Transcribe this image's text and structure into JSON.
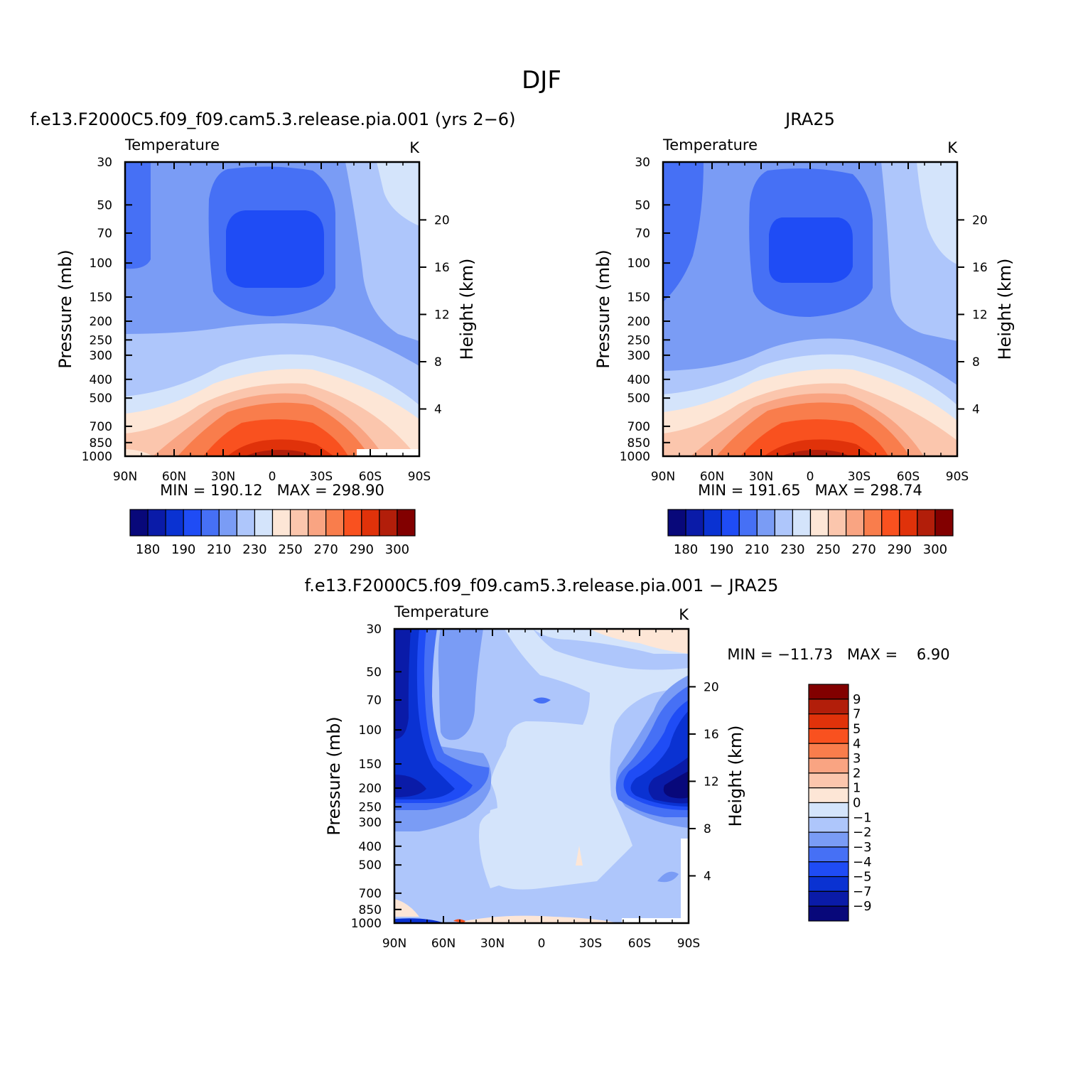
{
  "page_title": "DJF",
  "colors": {
    "abs_scale": [
      "#08087a",
      "#0a1ba8",
      "#0a32d2",
      "#1f4cf5",
      "#4670f5",
      "#7a9cf5",
      "#aec6fb",
      "#d4e4fb",
      "#fde6d6",
      "#fbc6ad",
      "#f9a482",
      "#f97d4c",
      "#f9511f",
      "#e0320a",
      "#b21e0a",
      "#820000"
    ],
    "diff_scale": [
      "#08087a",
      "#0a1ba8",
      "#0a32d2",
      "#1f4cf5",
      "#4670f5",
      "#7a9cf5",
      "#aec6fb",
      "#d4e4fb",
      "#fde6d6",
      "#fbc6ad",
      "#f9a482",
      "#f97d4c",
      "#f9511f",
      "#e0320a",
      "#b21e0a",
      "#820000"
    ]
  },
  "chart_data": [
    {
      "id": "model",
      "type": "contour",
      "title": "f.e13.F2000C5.f09_f09.cam5.3.release.pia.001 (yrs 2−6)",
      "left_label": "Temperature",
      "units": "K",
      "ylabel": "Pressure (mb)",
      "y2label": "Height (km)",
      "x_ticks": [
        "90N",
        "60N",
        "30N",
        "0",
        "30S",
        "60S",
        "90S"
      ],
      "y_ticks": [
        "30",
        "50",
        "70",
        "100",
        "150",
        "200",
        "250",
        "300",
        "400",
        "500",
        "700",
        "850",
        "1000"
      ],
      "y_tick_values": [
        30,
        50,
        70,
        100,
        150,
        200,
        250,
        300,
        400,
        500,
        700,
        850,
        1000
      ],
      "height_ticks": [
        "20",
        "16",
        "12",
        "8",
        "4"
      ],
      "height_tick_values": [
        20,
        16,
        12,
        8,
        4
      ],
      "min_max": "MIN = 190.12   MAX = 298.90",
      "colorbar_labels": [
        "180",
        "190",
        "210",
        "230",
        "250",
        "270",
        "290",
        "300"
      ],
      "levels": [
        180,
        185,
        190,
        200,
        210,
        220,
        230,
        240,
        250,
        260,
        270,
        280,
        290,
        295,
        300
      ]
    },
    {
      "id": "obs",
      "type": "contour",
      "title": "JRA25",
      "left_label": "Temperature",
      "units": "K",
      "ylabel": "Pressure (mb)",
      "y2label": "Height (km)",
      "x_ticks": [
        "90N",
        "60N",
        "30N",
        "0",
        "30S",
        "60S",
        "90S"
      ],
      "y_ticks": [
        "30",
        "50",
        "70",
        "100",
        "150",
        "200",
        "250",
        "300",
        "400",
        "500",
        "700",
        "850",
        "1000"
      ],
      "y_tick_values": [
        30,
        50,
        70,
        100,
        150,
        200,
        250,
        300,
        400,
        500,
        700,
        850,
        1000
      ],
      "height_ticks": [
        "20",
        "16",
        "12",
        "8",
        "4"
      ],
      "height_tick_values": [
        20,
        16,
        12,
        8,
        4
      ],
      "min_max": "MIN = 191.65   MAX = 298.74",
      "colorbar_labels": [
        "180",
        "190",
        "210",
        "230",
        "250",
        "270",
        "290",
        "300"
      ],
      "levels": [
        180,
        185,
        190,
        200,
        210,
        220,
        230,
        240,
        250,
        260,
        270,
        280,
        290,
        295,
        300
      ]
    },
    {
      "id": "diff",
      "type": "contour",
      "title": "f.e13.F2000C5.f09_f09.cam5.3.release.pia.001 − JRA25",
      "left_label": "Temperature",
      "units": "K",
      "ylabel": "Pressure (mb)",
      "y2label": "Height (km)",
      "x_ticks": [
        "90N",
        "60N",
        "30N",
        "0",
        "30S",
        "60S",
        "90S"
      ],
      "y_ticks": [
        "30",
        "50",
        "70",
        "100",
        "150",
        "200",
        "250",
        "300",
        "400",
        "500",
        "700",
        "850",
        "1000"
      ],
      "y_tick_values": [
        30,
        50,
        70,
        100,
        150,
        200,
        250,
        300,
        400,
        500,
        700,
        850,
        1000
      ],
      "height_ticks": [
        "20",
        "16",
        "12",
        "8",
        "4"
      ],
      "height_tick_values": [
        20,
        16,
        12,
        8,
        4
      ],
      "min_max": "MIN = −11.73   MAX =    6.90",
      "colorbar_labels": [
        "9",
        "7",
        "5",
        "4",
        "3",
        "2",
        "1",
        "0",
        "−1",
        "−2",
        "−3",
        "−4",
        "−5",
        "−7",
        "−9"
      ],
      "levels": [
        -9,
        -7,
        -5,
        -4,
        -3,
        -2,
        -1,
        0,
        1,
        2,
        3,
        4,
        5,
        7,
        9
      ]
    }
  ]
}
